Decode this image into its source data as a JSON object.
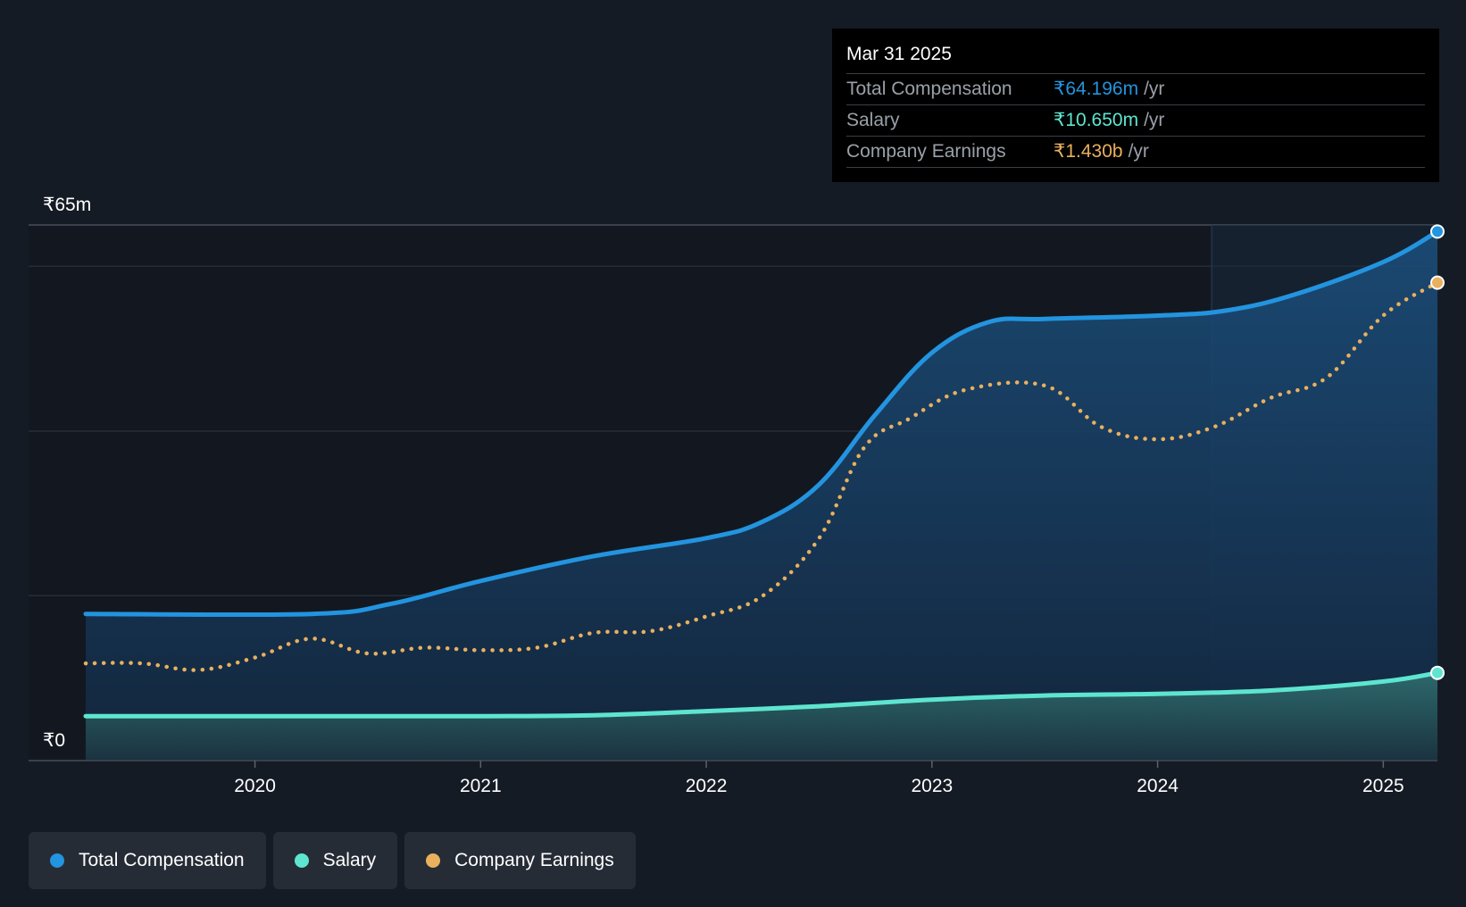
{
  "tooltip": {
    "date": "Mar 31 2025",
    "rows": [
      {
        "label": "Total Compensation",
        "value": "₹64.196m",
        "unit": "/yr",
        "color": "#2394df"
      },
      {
        "label": "Salary",
        "value": "₹10.650m",
        "unit": "/yr",
        "color": "#5ee5cf"
      },
      {
        "label": "Company Earnings",
        "value": "₹1.430b",
        "unit": "/yr",
        "color": "#e9b05e"
      }
    ]
  },
  "legend": {
    "items": [
      {
        "label": "Total Compensation",
        "color": "#2394df"
      },
      {
        "label": "Salary",
        "color": "#5ee5cf"
      },
      {
        "label": "Company Earnings",
        "color": "#e9b05e"
      }
    ]
  },
  "colors": {
    "background": "#151b24",
    "total_compensation": "#2394df",
    "salary": "#5ee5cf",
    "company_earnings": "#e9b05e"
  },
  "chart_data": {
    "type": "area",
    "ylim_labels": {
      "top": "₹65m",
      "bottom": "₹0"
    },
    "ylim": [
      0,
      65
    ],
    "xlim": [
      2019.25,
      2025.24
    ],
    "x_ticks": [
      2020,
      2021,
      2022,
      2023,
      2024,
      2025
    ],
    "x_tick_labels": [
      "2020",
      "2021",
      "2022",
      "2023",
      "2024",
      "2025"
    ],
    "grid": true,
    "legend_position": "bottom-left",
    "series": [
      {
        "name": "Total Compensation",
        "style": "solid-area",
        "points": [
          [
            2019.25,
            17.8
          ],
          [
            2020.25,
            17.8
          ],
          [
            2020.6,
            19.0
          ],
          [
            2021.0,
            21.8
          ],
          [
            2021.5,
            24.8
          ],
          [
            2022.0,
            27.0
          ],
          [
            2022.25,
            29.0
          ],
          [
            2022.5,
            33.5
          ],
          [
            2022.75,
            42.0
          ],
          [
            2023.0,
            49.5
          ],
          [
            2023.25,
            53.2
          ],
          [
            2023.5,
            53.6
          ],
          [
            2024.0,
            54.0
          ],
          [
            2024.3,
            54.6
          ],
          [
            2024.6,
            56.5
          ],
          [
            2025.0,
            60.5
          ],
          [
            2025.24,
            64.2
          ]
        ]
      },
      {
        "name": "Salary",
        "style": "solid-area",
        "points": [
          [
            2019.25,
            5.4
          ],
          [
            2020.0,
            5.4
          ],
          [
            2021.0,
            5.4
          ],
          [
            2021.5,
            5.5
          ],
          [
            2022.0,
            6.0
          ],
          [
            2022.5,
            6.6
          ],
          [
            2023.0,
            7.4
          ],
          [
            2023.5,
            7.9
          ],
          [
            2024.0,
            8.1
          ],
          [
            2024.5,
            8.5
          ],
          [
            2025.0,
            9.6
          ],
          [
            2025.24,
            10.65
          ]
        ]
      },
      {
        "name": "Company Earnings",
        "style": "dotted",
        "points": [
          [
            2019.25,
            11.8
          ],
          [
            2019.5,
            11.8
          ],
          [
            2019.75,
            11.0
          ],
          [
            2020.0,
            12.5
          ],
          [
            2020.25,
            14.8
          ],
          [
            2020.5,
            13.0
          ],
          [
            2020.75,
            13.7
          ],
          [
            2021.0,
            13.4
          ],
          [
            2021.25,
            13.7
          ],
          [
            2021.5,
            15.5
          ],
          [
            2021.75,
            15.7
          ],
          [
            2022.0,
            17.5
          ],
          [
            2022.25,
            20.0
          ],
          [
            2022.5,
            27.0
          ],
          [
            2022.7,
            38.0
          ],
          [
            2022.9,
            41.5
          ],
          [
            2023.15,
            45.0
          ],
          [
            2023.5,
            45.5
          ],
          [
            2023.75,
            40.5
          ],
          [
            2024.0,
            39.0
          ],
          [
            2024.25,
            40.5
          ],
          [
            2024.5,
            44.0
          ],
          [
            2024.75,
            46.5
          ],
          [
            2025.0,
            54.0
          ],
          [
            2025.24,
            58.0
          ]
        ]
      }
    ]
  }
}
